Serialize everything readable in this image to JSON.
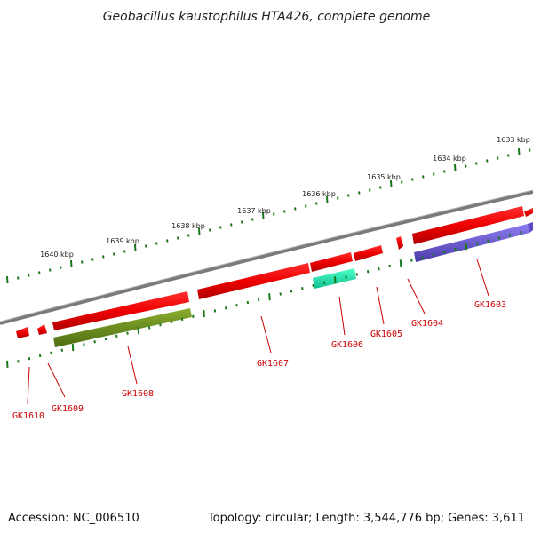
{
  "title": "Geobacillus kaustophilus HTA426, complete genome",
  "accession": "Accession: NC_006510",
  "topology": "Topology: circular; Length: 3,544,776 bp; Genes: 3,611",
  "kbp_labels": [
    "1633 kbp",
    "1634 kbp",
    "1635 kbp",
    "1636 kbp",
    "1637 kbp",
    "1638 kbp",
    "1639 kbp",
    "1640 kbp"
  ],
  "gene_labels": [
    "GK1603",
    "GK1604",
    "GK1605",
    "GK1606",
    "GK1607",
    "GK1608",
    "GK1609",
    "GK1610"
  ],
  "colors": {
    "backbone": "#808080",
    "gene_red": "#ff0000",
    "cds_blue": "#6a5acd",
    "cds_olive": "#6b8e23",
    "cds_teal": "#1de9b6",
    "tick": "#1a7a1a",
    "label": "#cc0000"
  }
}
